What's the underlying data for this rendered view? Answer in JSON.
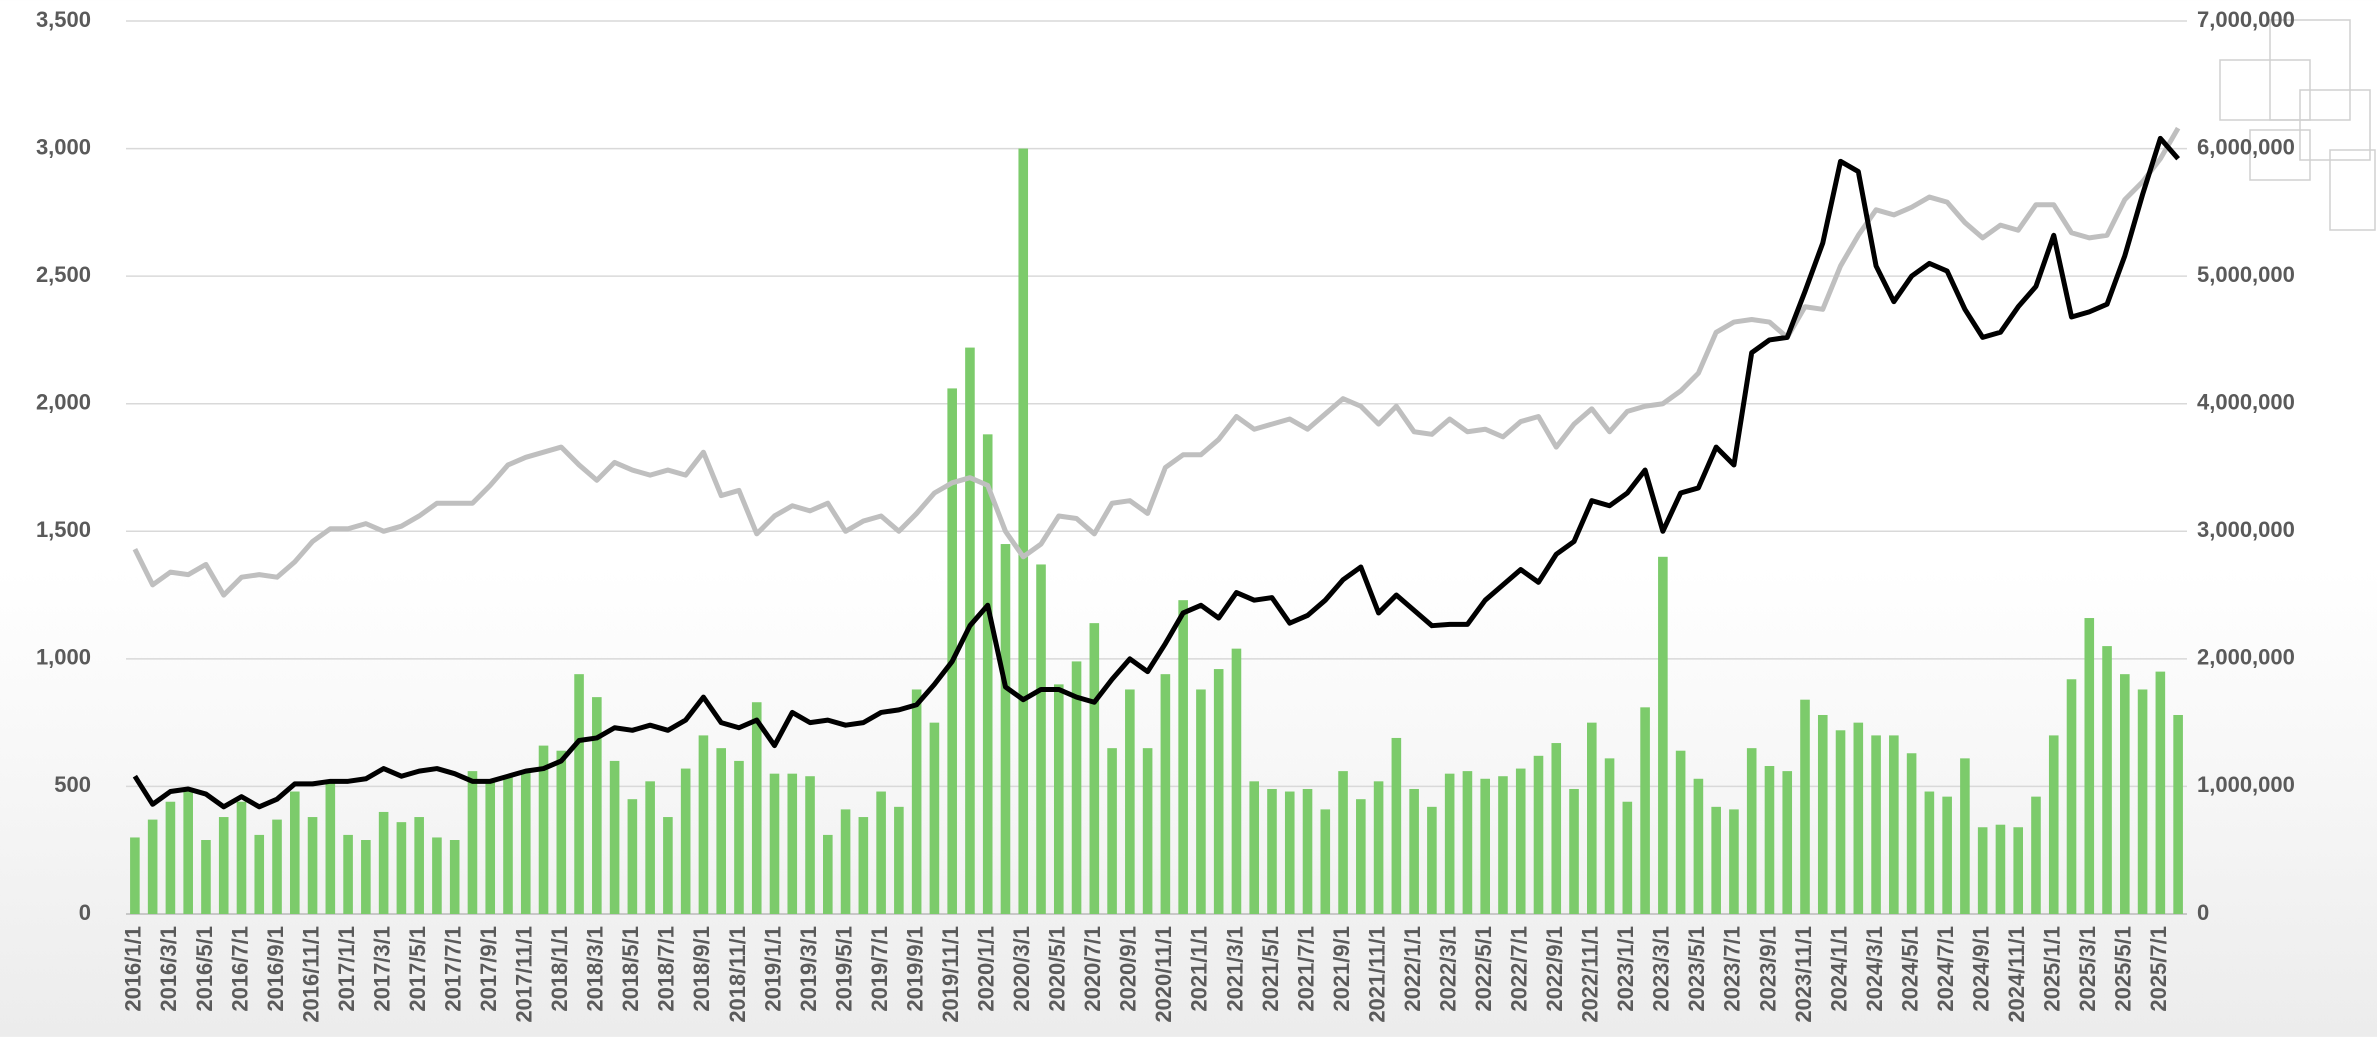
{
  "chart_data": {
    "type": "combo",
    "categories": [
      "2016/1/1",
      null,
      "2016/3/1",
      null,
      "2016/5/1",
      null,
      "2016/7/1",
      null,
      "2016/9/1",
      null,
      "2016/11/1",
      null,
      "2017/1/1",
      null,
      "2017/3/1",
      null,
      "2017/5/1",
      null,
      "2017/7/1",
      null,
      "2017/9/1",
      null,
      "2017/11/1",
      null,
      "2018/1/1",
      null,
      "2018/3/1",
      null,
      "2018/5/1",
      null,
      "2018/7/1",
      null,
      "2018/9/1",
      null,
      "2018/11/1",
      null,
      "2019/1/1",
      null,
      "2019/3/1",
      null,
      "2019/5/1",
      null,
      "2019/7/1",
      null,
      "2019/9/1",
      null,
      "2019/11/1",
      null,
      "2020/1/1",
      null,
      "2020/3/1",
      null,
      "2020/5/1",
      null,
      "2020/7/1",
      null,
      "2020/9/1",
      null,
      "2020/11/1",
      null,
      "2021/1/1",
      null,
      "2021/3/1",
      null,
      "2021/5/1",
      null,
      "2021/7/1",
      null,
      "2021/9/1",
      null,
      "2021/11/1",
      null,
      "2022/1/1",
      null,
      "2022/3/1",
      null,
      "2022/5/1",
      null,
      "2022/7/1",
      null,
      "2022/9/1",
      null,
      "2022/11/1",
      null,
      "2023/1/1",
      null,
      "2023/3/1",
      null,
      "2023/5/1",
      null,
      "2023/7/1",
      null,
      "2023/9/1",
      null,
      "2023/11/1",
      null,
      "2024/1/1",
      null,
      "2024/3/1",
      null,
      "2024/5/1",
      null,
      "2024/7/1",
      null,
      "2024/9/1",
      null,
      "2024/11/1",
      null,
      "2025/1/1",
      null,
      "2025/3/1",
      null,
      "2025/5/1",
      null,
      "2025/7/1",
      null
    ],
    "series": [
      {
        "type": "bar",
        "color": "#7ccb6b",
        "values": [
          300,
          370,
          440,
          480,
          290,
          380,
          440,
          310,
          370,
          480,
          380,
          520,
          310,
          290,
          400,
          360,
          380,
          300,
          290,
          560,
          520,
          540,
          560,
          660,
          640,
          940,
          850,
          600,
          450,
          520,
          380,
          570,
          700,
          650,
          600,
          830,
          550,
          550,
          540,
          310,
          410,
          380,
          480,
          420,
          880,
          750,
          2060,
          2220,
          1880,
          1450,
          3000,
          1370,
          900,
          990,
          1140,
          650,
          880,
          650,
          940,
          1230,
          880,
          960,
          1040,
          520,
          490,
          480,
          490,
          410,
          560,
          450,
          520,
          690,
          490,
          420,
          550,
          560,
          530,
          540,
          570,
          620,
          670,
          490,
          750,
          610,
          440,
          810,
          1400,
          640,
          530,
          420,
          410,
          650,
          580,
          560,
          840,
          780,
          720,
          750,
          700,
          700,
          630,
          480,
          460,
          610,
          340,
          350,
          340,
          460,
          700,
          920,
          1160,
          1050,
          940,
          880,
          950,
          780
        ]
      },
      {
        "type": "line",
        "axis": "y2",
        "color": "#bfbfbf",
        "values": [
          2860000,
          2580000,
          2680000,
          2660000,
          2740000,
          2500000,
          2640000,
          2660000,
          2640000,
          2760000,
          2920000,
          3020000,
          3020000,
          3060000,
          3000000,
          3040000,
          3120000,
          3220000,
          3220000,
          3220000,
          3360000,
          3520000,
          3580000,
          3620000,
          3660000,
          3520000,
          3400000,
          3540000,
          3480000,
          3440000,
          3480000,
          3440000,
          3620000,
          3280000,
          3320000,
          2980000,
          3120000,
          3200000,
          3160000,
          3220000,
          3000000,
          3080000,
          3120000,
          3000000,
          3140000,
          3300000,
          3380000,
          3420000,
          3360000,
          3000000,
          2800000,
          2900000,
          3120000,
          3100000,
          2980000,
          3220000,
          3240000,
          3140000,
          3500000,
          3600000,
          3600000,
          3720000,
          3900000,
          3800000,
          3840000,
          3880000,
          3800000,
          3920000,
          4040000,
          3980000,
          3840000,
          3980000,
          3780000,
          3760000,
          3880000,
          3780000,
          3800000,
          3740000,
          3860000,
          3900000,
          3660000,
          3840000,
          3960000,
          3780000,
          3940000,
          3980000,
          4000000,
          4100000,
          4240000,
          4560000,
          4640000,
          4660000,
          4640000,
          4520000,
          4760000,
          4740000,
          5080000,
          5320000,
          5520000,
          5480000,
          5540000,
          5620000,
          5580000,
          5420000,
          5300000,
          5400000,
          5360000,
          5560000,
          5560000,
          5340000,
          5300000,
          5320000,
          5600000,
          5740000,
          5920000,
          6160000
        ]
      },
      {
        "type": "line",
        "color": "#000000",
        "values": [
          540,
          430,
          480,
          490,
          470,
          420,
          460,
          420,
          450,
          510,
          510,
          520,
          520,
          530,
          570,
          540,
          560,
          570,
          550,
          520,
          520,
          540,
          560,
          570,
          600,
          680,
          690,
          730,
          720,
          740,
          720,
          760,
          850,
          750,
          730,
          760,
          660,
          790,
          750,
          760,
          740,
          750,
          790,
          800,
          820,
          900,
          990,
          1130,
          1210,
          890,
          840,
          880,
          880,
          850,
          830,
          920,
          1000,
          950,
          1060,
          1180,
          1210,
          1160,
          1260,
          1230,
          1240,
          1140,
          1170,
          1230,
          1310,
          1360,
          1180,
          1250,
          1190,
          1130,
          1135,
          1135,
          1230,
          1290,
          1350,
          1300,
          1410,
          1460,
          1620,
          1600,
          1650,
          1740,
          1500,
          1650,
          1670,
          1830,
          1760,
          2200,
          2250,
          2260,
          2440,
          2630,
          2950,
          2910,
          2540,
          2400,
          2500,
          2550,
          2520,
          2370,
          2260,
          2280,
          2380,
          2460,
          2660,
          2340,
          2360,
          2390,
          2580,
          2820,
          3040,
          2960
        ]
      }
    ],
    "ylim": [
      0,
      3500
    ],
    "yticks": [
      0,
      500,
      {
        "value": 1000,
        "label": "1,000"
      },
      {
        "value": 1500,
        "label": "1,500"
      },
      {
        "value": 2000,
        "label": "2,000"
      },
      {
        "value": 2500,
        "label": "2,500"
      },
      {
        "value": 3000,
        "label": "3,000"
      },
      {
        "value": 3500,
        "label": "3,500"
      }
    ],
    "y2lim": [
      0,
      7000000
    ],
    "y2ticks": [
      0,
      {
        "value": 1000000,
        "label": "1,000,000"
      },
      {
        "value": 2000000,
        "label": "2,000,000"
      },
      {
        "value": 3000000,
        "label": "3,000,000"
      },
      {
        "value": 4000000,
        "label": "4,000,000"
      },
      {
        "value": 5000000,
        "label": "5,000,000"
      },
      {
        "value": 6000000,
        "label": "6,000,000"
      },
      {
        "value": 7000000,
        "label": "7,000,000"
      }
    ],
    "grid": true
  }
}
